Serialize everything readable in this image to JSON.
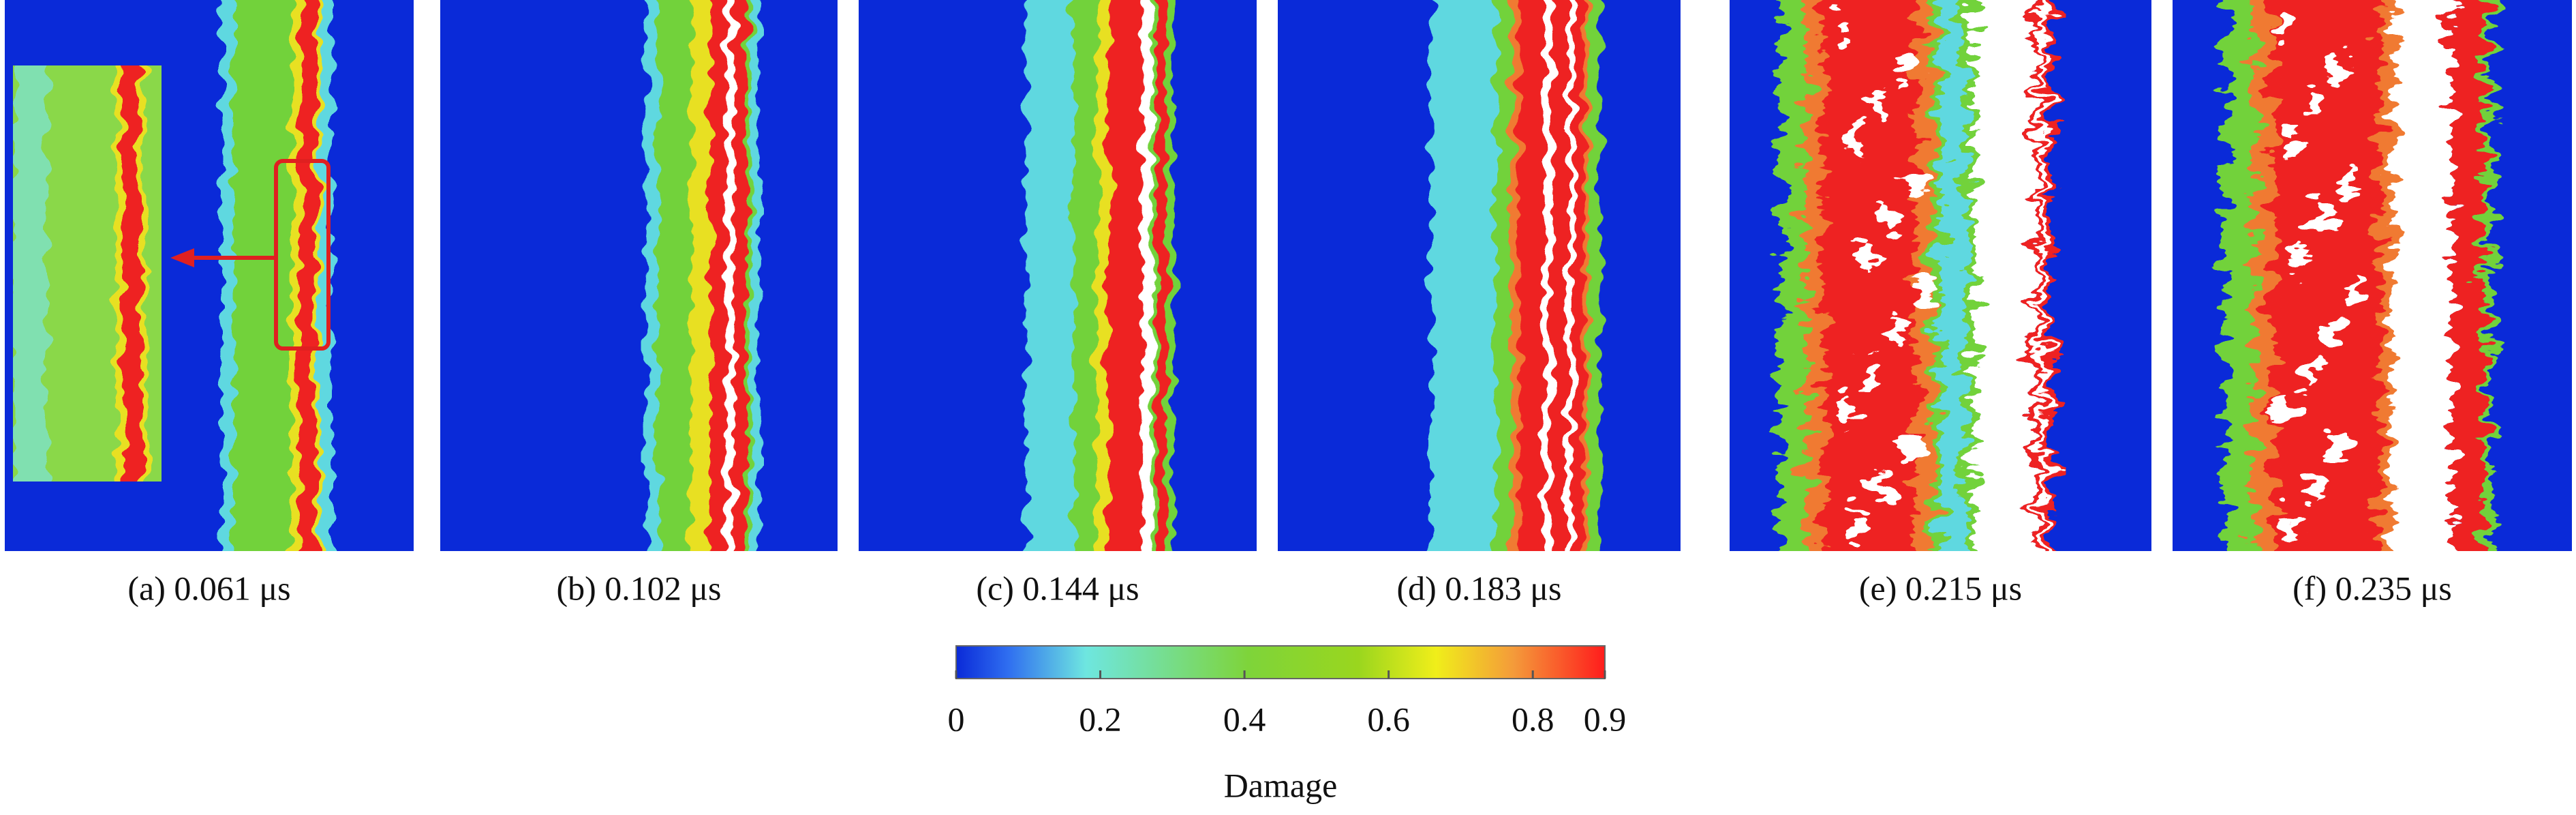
{
  "panels": [
    {
      "caption": "(a) 0.061 μs"
    },
    {
      "caption": "(b) 0.102 μs"
    },
    {
      "caption": "(c) 0.144 μs"
    },
    {
      "caption": "(d) 0.183 μs"
    },
    {
      "caption": "(e) 0.215 μs"
    },
    {
      "caption": "(f) 0.235 μs"
    }
  ],
  "colorbar": {
    "label": "Damage",
    "lim": [
      0,
      0.9
    ],
    "ticks": [
      0,
      0.2,
      0.4,
      0.6,
      0.8,
      0.9
    ]
  }
}
